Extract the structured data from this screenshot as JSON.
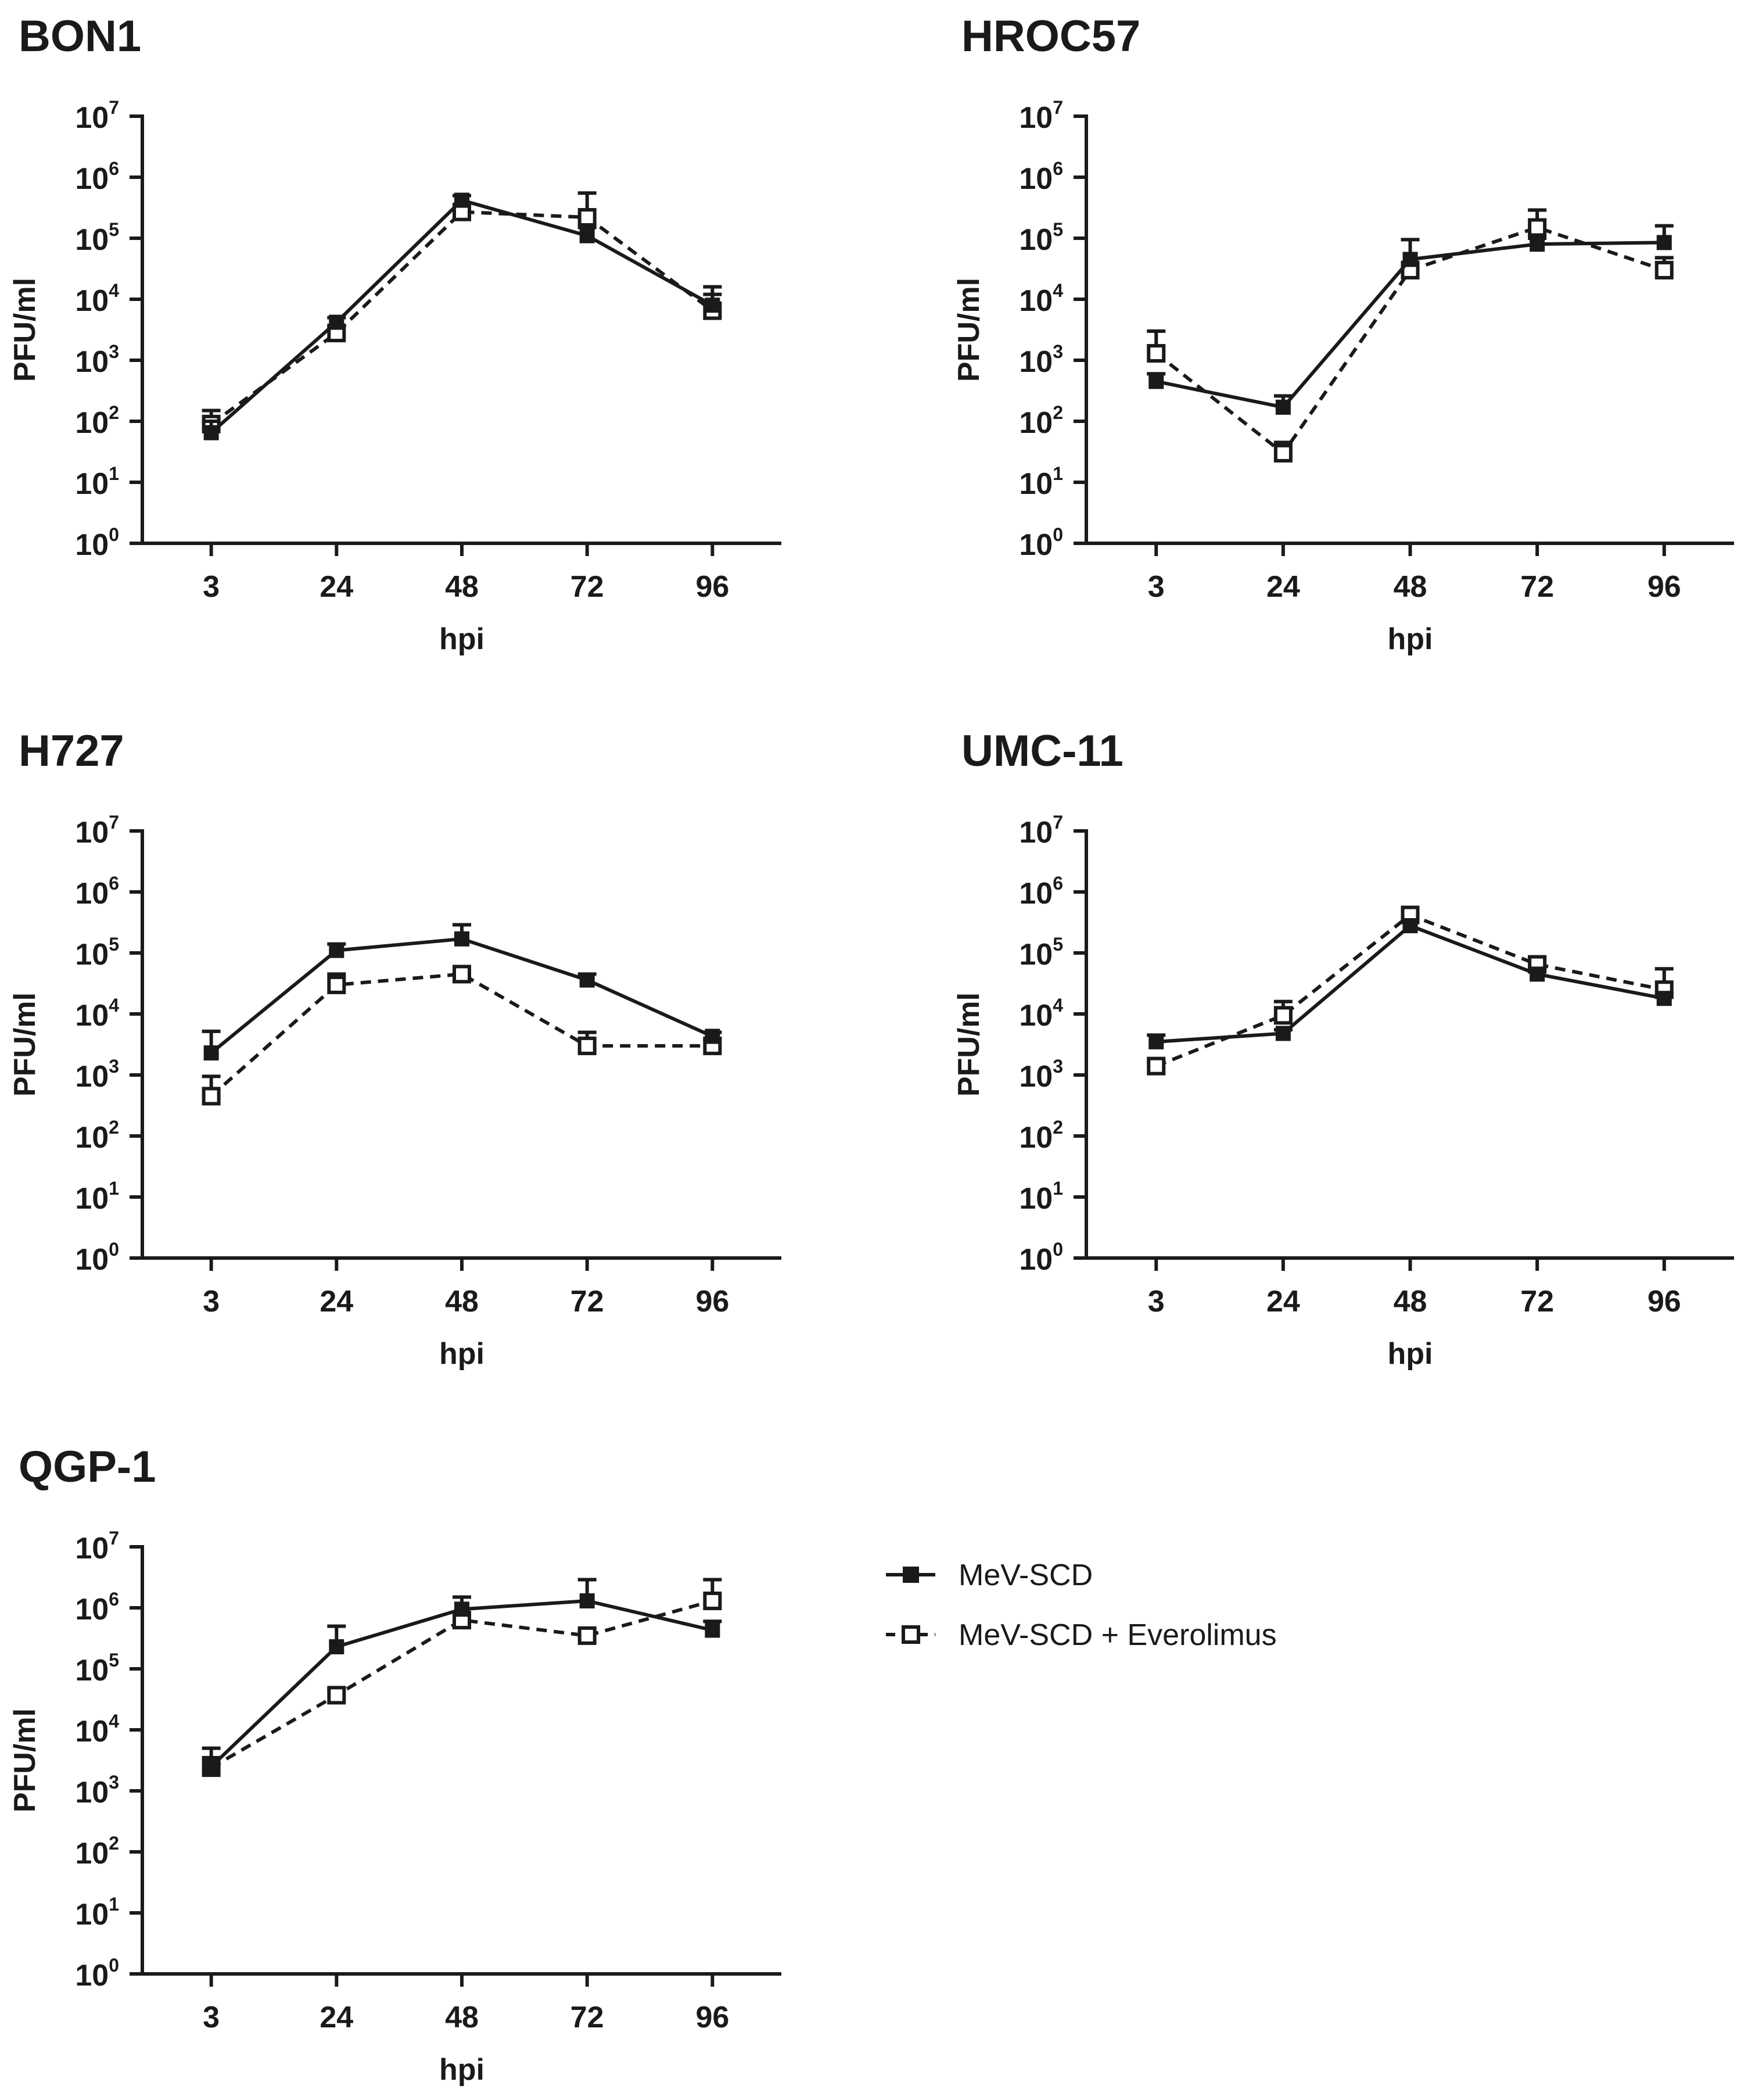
{
  "figure": {
    "legend": {
      "entries": [
        {
          "label": "MeV-SCD",
          "marker": "filled-square",
          "line": "solid"
        },
        {
          "label": "MeV-SCD + Everolimus",
          "marker": "open-square",
          "line": "dashed"
        }
      ]
    },
    "colors": {
      "ink": "#1a1a1a",
      "background": "#ffffff"
    }
  },
  "chart_data": [
    {
      "type": "line",
      "title": "BON1",
      "xlabel": "hpi",
      "ylabel": "PFU/ml",
      "yscale": "log",
      "ylim": [
        1,
        10000000
      ],
      "categories": [
        "3",
        "24",
        "48",
        "72",
        "96"
      ],
      "ytick_labels": [
        {
          "base": "10",
          "exp": "0"
        },
        {
          "base": "10",
          "exp": "1"
        },
        {
          "base": "10",
          "exp": "2"
        },
        {
          "base": "10",
          "exp": "3"
        },
        {
          "base": "10",
          "exp": "4"
        },
        {
          "base": "10",
          "exp": "5"
        },
        {
          "base": "10",
          "exp": "6"
        },
        {
          "base": "10",
          "exp": "7"
        }
      ],
      "series": [
        {
          "name": "MeV-SCD",
          "values": [
            65,
            4200,
            420000,
            110000,
            8000
          ],
          "error_upper": [
            100,
            5000,
            500000,
            150000,
            12000
          ]
        },
        {
          "name": "MeV-SCD + Everolimus",
          "values": [
            90,
            2800,
            270000,
            220000,
            6500
          ],
          "error_upper": [
            150,
            3500,
            320000,
            550000,
            16000
          ]
        }
      ]
    },
    {
      "type": "line",
      "title": "HROC57",
      "xlabel": "hpi",
      "ylabel": "PFU/ml",
      "yscale": "log",
      "ylim": [
        1,
        10000000
      ],
      "categories": [
        "3",
        "24",
        "48",
        "72",
        "96"
      ],
      "ytick_labels": [
        {
          "base": "10",
          "exp": "0"
        },
        {
          "base": "10",
          "exp": "1"
        },
        {
          "base": "10",
          "exp": "2"
        },
        {
          "base": "10",
          "exp": "3"
        },
        {
          "base": "10",
          "exp": "4"
        },
        {
          "base": "10",
          "exp": "5"
        },
        {
          "base": "10",
          "exp": "6"
        },
        {
          "base": "10",
          "exp": "7"
        }
      ],
      "series": [
        {
          "name": "MeV-SCD",
          "values": [
            450,
            170,
            45000,
            80000,
            85000
          ],
          "error_upper": [
            600,
            260,
            95000,
            100000,
            160000
          ]
        },
        {
          "name": "MeV-SCD + Everolimus",
          "values": [
            1300,
            30,
            30000,
            150000,
            30000
          ],
          "error_upper": [
            3000,
            45,
            40000,
            290000,
            48000
          ]
        }
      ]
    },
    {
      "type": "line",
      "title": "H727",
      "xlabel": "hpi",
      "ylabel": "PFU/ml",
      "yscale": "log",
      "ylim": [
        1,
        10000000
      ],
      "categories": [
        "3",
        "24",
        "48",
        "72",
        "96"
      ],
      "ytick_labels": [
        {
          "base": "10",
          "exp": "0"
        },
        {
          "base": "10",
          "exp": "1"
        },
        {
          "base": "10",
          "exp": "2"
        },
        {
          "base": "10",
          "exp": "3"
        },
        {
          "base": "10",
          "exp": "4"
        },
        {
          "base": "10",
          "exp": "5"
        },
        {
          "base": "10",
          "exp": "6"
        },
        {
          "base": "10",
          "exp": "7"
        }
      ],
      "series": [
        {
          "name": "MeV-SCD",
          "values": [
            2300,
            110000,
            170000,
            36000,
            4300
          ],
          "error_upper": [
            5200,
            140000,
            290000,
            45000,
            5000
          ]
        },
        {
          "name": "MeV-SCD + Everolimus",
          "values": [
            450,
            30000,
            45000,
            3000,
            3000
          ],
          "error_upper": [
            950,
            45000,
            50000,
            5000,
            3800
          ]
        }
      ]
    },
    {
      "type": "line",
      "title": "UMC-11",
      "xlabel": "hpi",
      "ylabel": "PFU/ml",
      "yscale": "log",
      "ylim": [
        1,
        10000000
      ],
      "categories": [
        "3",
        "24",
        "48",
        "72",
        "96"
      ],
      "ytick_labels": [
        {
          "base": "10",
          "exp": "0"
        },
        {
          "base": "10",
          "exp": "1"
        },
        {
          "base": "10",
          "exp": "2"
        },
        {
          "base": "10",
          "exp": "3"
        },
        {
          "base": "10",
          "exp": "4"
        },
        {
          "base": "10",
          "exp": "5"
        },
        {
          "base": "10",
          "exp": "6"
        },
        {
          "base": "10",
          "exp": "7"
        }
      ],
      "series": [
        {
          "name": "MeV-SCD",
          "values": [
            3500,
            4800,
            280000,
            45000,
            18000
          ],
          "error_upper": [
            4500,
            5500,
            320000,
            55000,
            22000
          ]
        },
        {
          "name": "MeV-SCD + Everolimus",
          "values": [
            1400,
            9500,
            420000,
            65000,
            25000
          ],
          "error_upper": [
            1600,
            16000,
            520000,
            85000,
            55000
          ]
        }
      ]
    },
    {
      "type": "line",
      "title": "QGP-1",
      "xlabel": "hpi",
      "ylabel": "PFU/ml",
      "yscale": "log",
      "ylim": [
        1,
        10000000
      ],
      "categories": [
        "3",
        "24",
        "48",
        "72",
        "96"
      ],
      "ytick_labels": [
        {
          "base": "10",
          "exp": "0"
        },
        {
          "base": "10",
          "exp": "1"
        },
        {
          "base": "10",
          "exp": "2"
        },
        {
          "base": "10",
          "exp": "3"
        },
        {
          "base": "10",
          "exp": "4"
        },
        {
          "base": "10",
          "exp": "5"
        },
        {
          "base": "10",
          "exp": "6"
        },
        {
          "base": "10",
          "exp": "7"
        }
      ],
      "series": [
        {
          "name": "MeV-SCD",
          "values": [
            2500,
            230000,
            950000,
            1300000,
            430000
          ],
          "error_upper": [
            5000,
            500000,
            1500000,
            2900000,
            600000
          ]
        },
        {
          "name": "MeV-SCD + Everolimus",
          "values": [
            2400,
            37000,
            630000,
            350000,
            1300000
          ],
          "error_upper": [
            3500,
            45000,
            800000,
            420000,
            2900000
          ]
        }
      ]
    }
  ]
}
